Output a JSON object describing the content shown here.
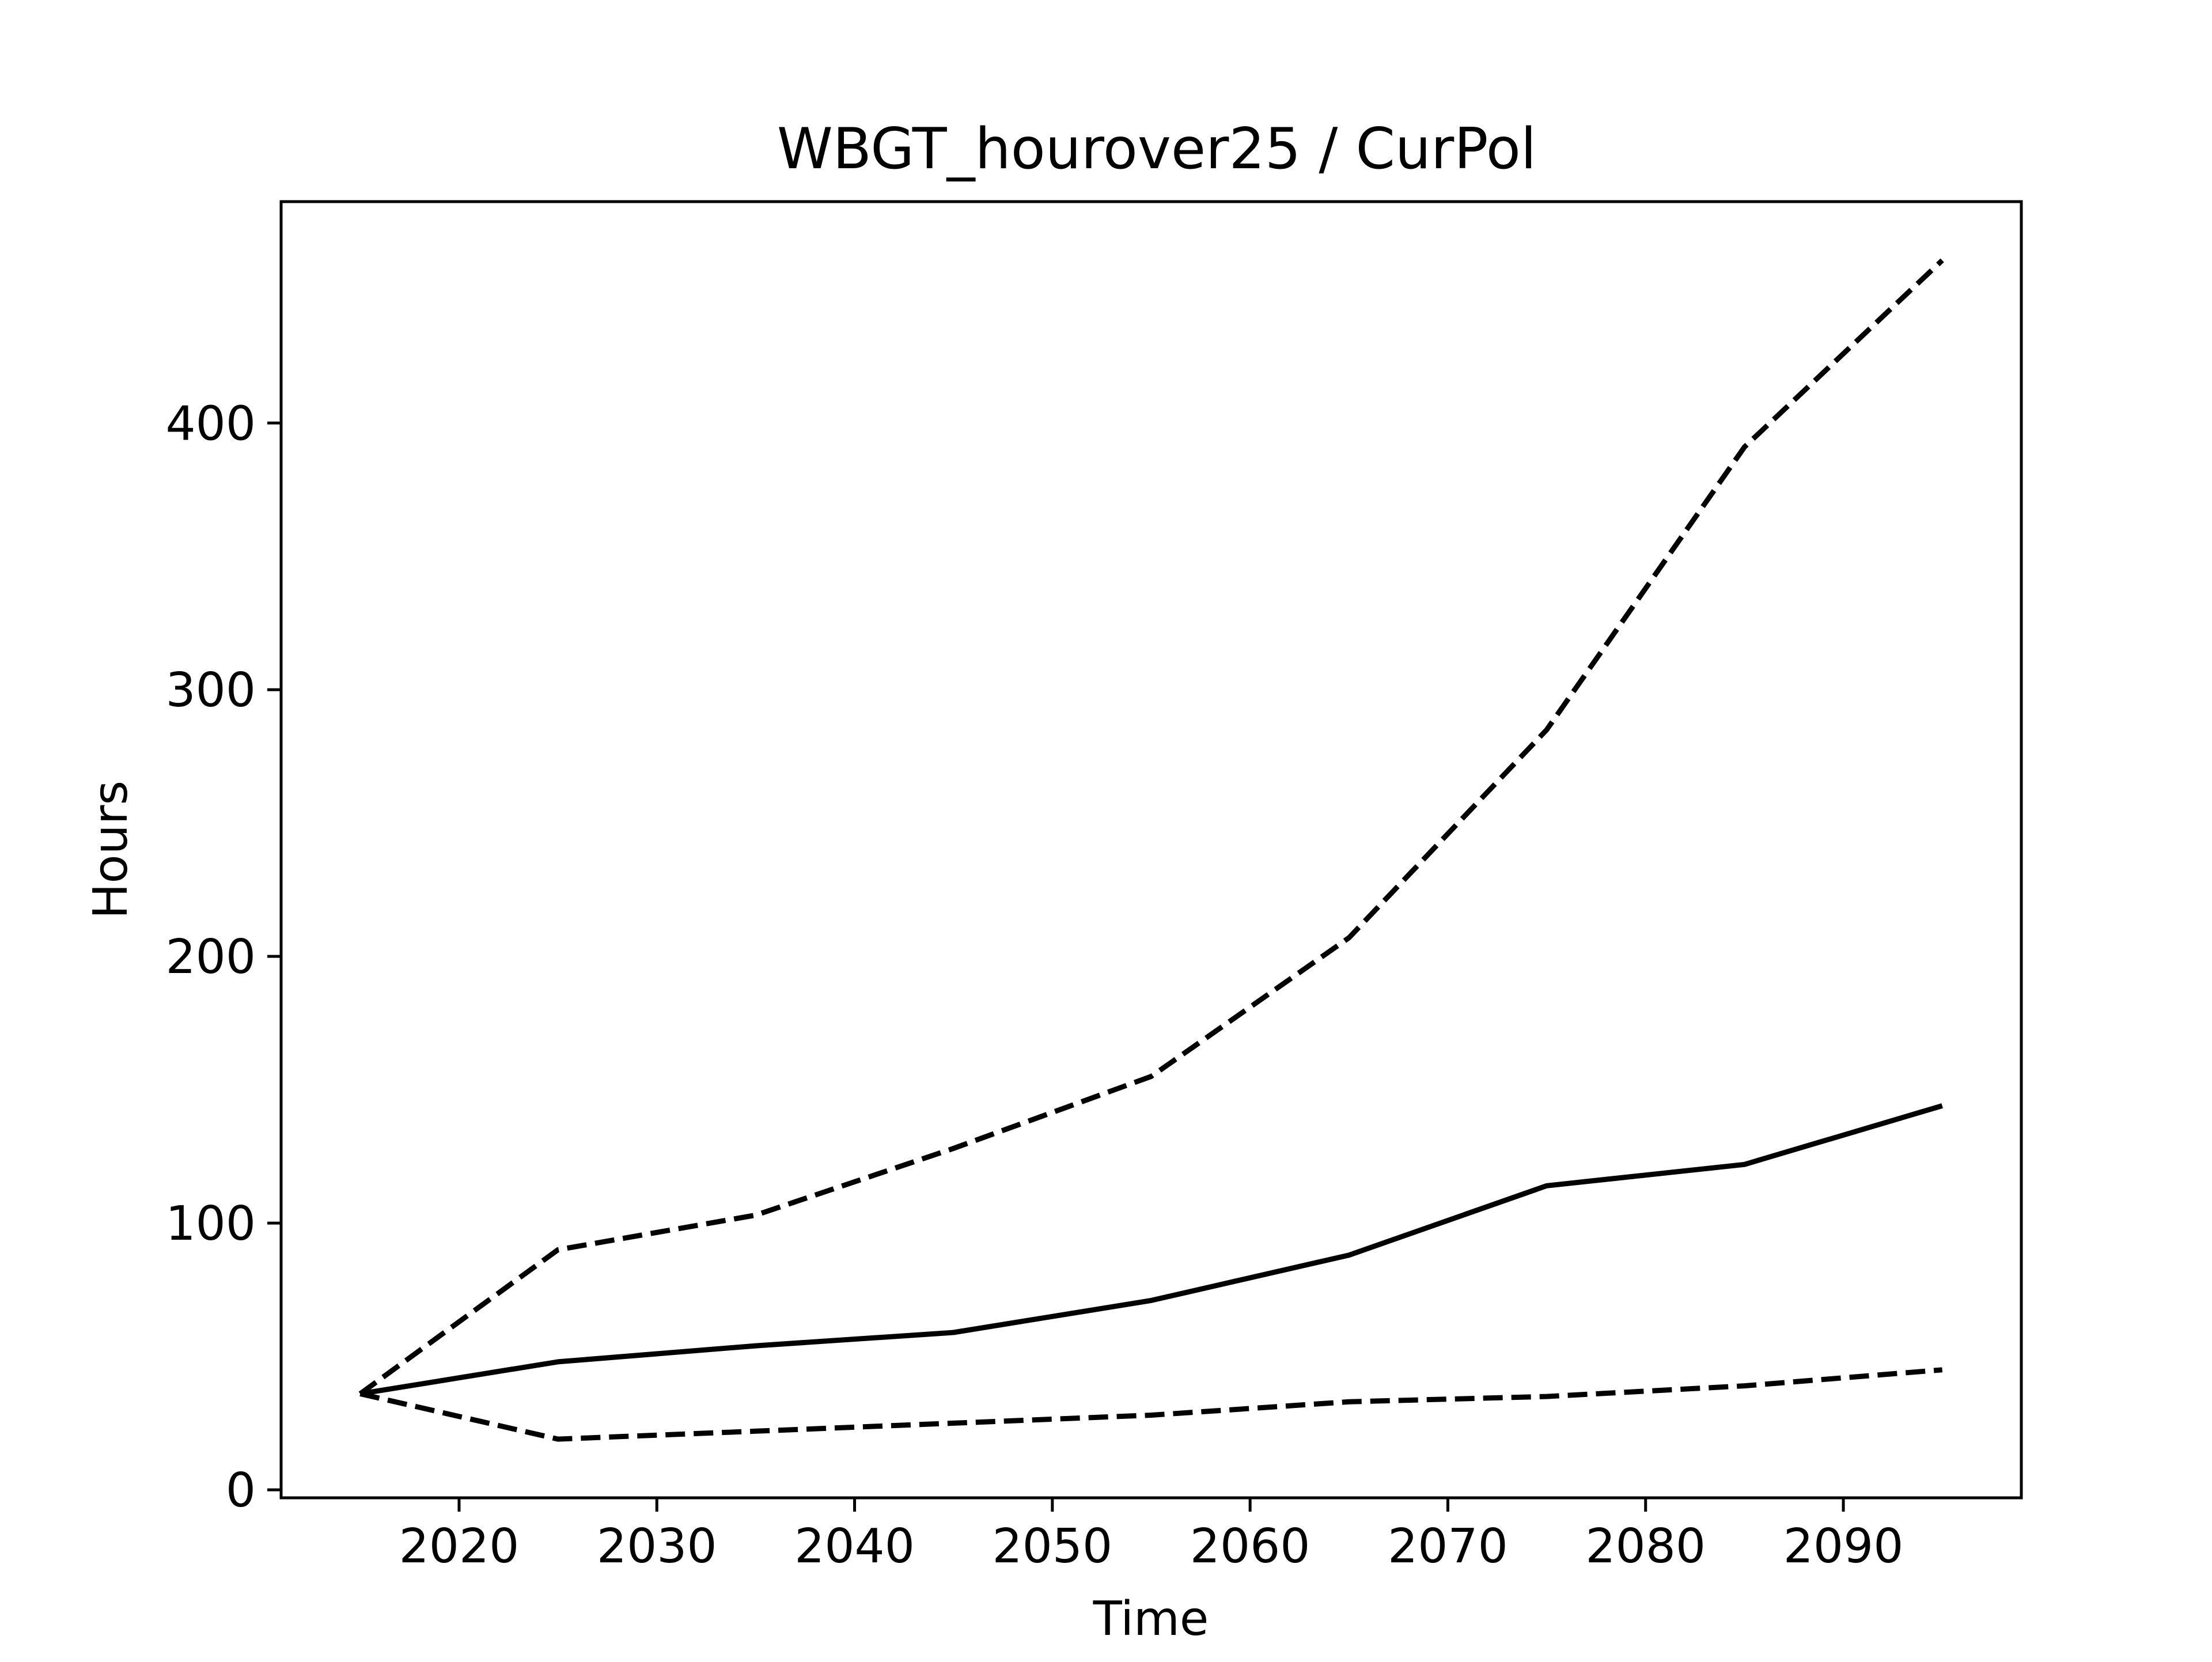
{
  "chart_data": {
    "type": "line",
    "title": "WBGT_hourover25 / CurPol",
    "xlabel": "Time",
    "ylabel": "Hours",
    "xlim": [
      2011,
      2099
    ],
    "ylim": [
      -3,
      483
    ],
    "xticks": [
      2020,
      2030,
      2040,
      2050,
      2060,
      2070,
      2080,
      2090
    ],
    "yticks": [
      0,
      100,
      200,
      300,
      400
    ],
    "grid": false,
    "legend": "none",
    "x": [
      2015,
      2025,
      2035,
      2045,
      2055,
      2065,
      2075,
      2085,
      2095
    ],
    "series": [
      {
        "style": "solid",
        "color": "#000000",
        "values": [
          36,
          48,
          54,
          59,
          71,
          88,
          114,
          122,
          144
        ]
      },
      {
        "style": "dashed",
        "color": "#000000",
        "values": [
          36,
          90,
          103,
          128,
          155,
          207,
          285,
          391,
          461
        ]
      },
      {
        "style": "dashed",
        "color": "#000000",
        "values": [
          36,
          19,
          22,
          25,
          28,
          33,
          35,
          39,
          45
        ]
      }
    ]
  }
}
